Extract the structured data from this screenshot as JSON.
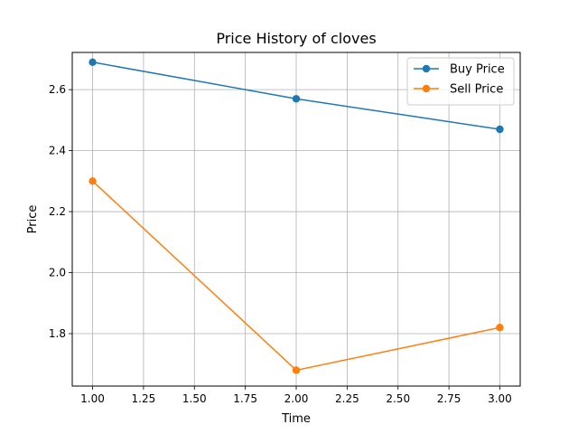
{
  "chart_data": {
    "type": "line",
    "title": "Price History of cloves",
    "xlabel": "Time",
    "ylabel": "Price",
    "xlim": [
      0.9,
      3.1
    ],
    "ylim": [
      1.628,
      2.722
    ],
    "xticks": [
      1.0,
      1.25,
      1.5,
      1.75,
      2.0,
      2.25,
      2.5,
      2.75,
      3.0
    ],
    "xtick_labels": [
      "1.00",
      "1.25",
      "1.50",
      "1.75",
      "2.00",
      "2.25",
      "2.50",
      "2.75",
      "3.00"
    ],
    "yticks": [
      1.8,
      2.0,
      2.2,
      2.4,
      2.6
    ],
    "ytick_labels": [
      "1.8",
      "2.0",
      "2.2",
      "2.4",
      "2.6"
    ],
    "grid": true,
    "legend_position": "top-right",
    "series": [
      {
        "name": "Buy Price",
        "color": "#1f77b4",
        "x": [
          1,
          2,
          3
        ],
        "y": [
          2.69,
          2.57,
          2.47
        ]
      },
      {
        "name": "Sell Price",
        "color": "#ff7f0e",
        "x": [
          1,
          2,
          3
        ],
        "y": [
          2.3,
          1.68,
          1.82
        ]
      }
    ]
  }
}
